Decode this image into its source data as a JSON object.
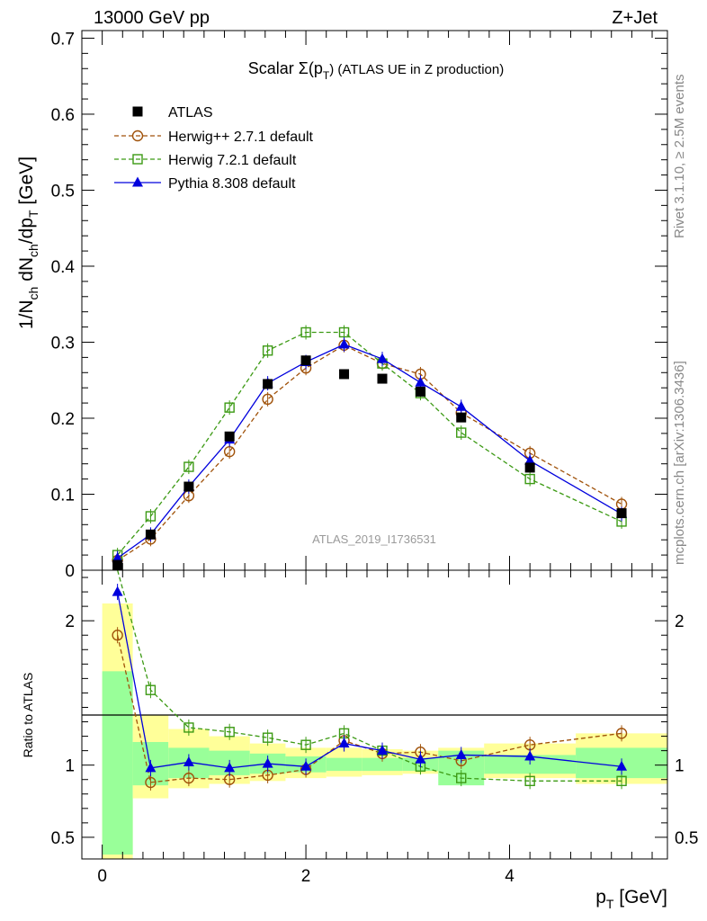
{
  "header": {
    "beam": "13000 GeV pp",
    "process": "Z+Jet"
  },
  "side_text": {
    "rivet": "Rivet 3.1.10, ≥ 2.5M events",
    "mcplots": "mcplots.cern.ch [arXiv:1306.3436]"
  },
  "watermark": "ATLAS_2019_I1736531",
  "colors": {
    "atlas": "#000000",
    "herwigpp": "#a0520a",
    "herwig7": "#3c9a14",
    "pythia": "#0000dd",
    "band_outer": "#ffff99",
    "band_inner": "#99ff99"
  },
  "chart_data": [
    {
      "type": "line",
      "title_prefix": "Scalar Σ(p",
      "title_sub": "T",
      "title_suffix": ") (ATLAS UE in Z production)",
      "ylabel": "1/N_ch dN_ch/dp_T [GeV]",
      "xlim": [
        -0.2,
        5.55
      ],
      "ylim": [
        0,
        0.71
      ],
      "yticks": [
        "0",
        "0.1",
        "0.2",
        "0.3",
        "0.4",
        "0.5",
        "0.6",
        "0.7"
      ],
      "legend_position": "top-left",
      "x": [
        0.15,
        0.475,
        0.85,
        1.25,
        1.625,
        2.0,
        2.375,
        2.75,
        3.125,
        3.525,
        4.2,
        5.1
      ],
      "series": [
        {
          "name": "ATLAS",
          "style": "points",
          "values": [
            0.007,
            0.047,
            0.11,
            0.176,
            0.245,
            0.276,
            0.258,
            0.252,
            0.235,
            0.201,
            0.135,
            0.075
          ]
        },
        {
          "name": "Herwig++ 2.7.1 default",
          "style": "dashed-circle",
          "values": [
            0.013,
            0.041,
            0.098,
            0.156,
            0.225,
            0.266,
            0.296,
            0.272,
            0.258,
            0.207,
            0.154,
            0.087
          ]
        },
        {
          "name": "Herwig 7.2.1 default",
          "style": "dashed-square",
          "values": [
            0.02,
            0.071,
            0.136,
            0.214,
            0.289,
            0.313,
            0.313,
            0.272,
            0.233,
            0.181,
            0.12,
            0.064
          ]
        },
        {
          "name": "Pythia 8.308 default",
          "style": "solid-triangle",
          "values": [
            0.016,
            0.047,
            0.11,
            0.172,
            0.246,
            0.274,
            0.297,
            0.278,
            0.247,
            0.215,
            0.144,
            0.074
          ]
        }
      ]
    },
    {
      "type": "line",
      "ylabel": "Ratio to ATLAS",
      "xlabel": "p_T [GeV]",
      "xlim": [
        -0.2,
        5.55
      ],
      "ylim": [
        0.35,
        2.35
      ],
      "xticks": [
        "0",
        "2",
        "4"
      ],
      "yticks": [
        "0.5",
        "1",
        "2"
      ],
      "bands": {
        "edges": [
          0,
          0.3,
          0.65,
          1.05,
          1.45,
          1.8,
          2.2,
          2.55,
          2.95,
          3.3,
          3.75,
          4.65,
          5.55
        ],
        "outer_low": [
          0.35,
          0.77,
          0.84,
          0.87,
          0.89,
          0.91,
          0.92,
          0.93,
          0.94,
          0.93,
          0.91,
          0.87
        ],
        "outer_high": [
          2.12,
          1.35,
          1.25,
          1.2,
          1.15,
          1.12,
          1.12,
          1.11,
          1.1,
          1.12,
          1.15,
          1.22
        ],
        "inner_low": [
          0.38,
          0.86,
          0.91,
          0.93,
          0.94,
          0.95,
          0.96,
          0.96,
          0.96,
          0.86,
          0.94,
          0.91
        ],
        "inner_high": [
          1.65,
          1.16,
          1.12,
          1.1,
          1.08,
          1.06,
          1.05,
          1.05,
          1.05,
          1.1,
          1.07,
          1.12
        ]
      },
      "series": [
        {
          "name": "Herwig++ 2.7.1 default",
          "values": [
            1.9,
            0.88,
            0.91,
            0.9,
            0.93,
            0.97,
            1.17,
            1.08,
            1.09,
            1.03,
            1.14,
            1.22
          ]
        },
        {
          "name": "Herwig 7.2.1 default",
          "values": [
            2.9,
            1.52,
            1.26,
            1.23,
            1.19,
            1.14,
            1.22,
            1.1,
            0.99,
            0.91,
            0.89,
            0.89
          ]
        },
        {
          "name": "Pythia 8.308 default",
          "values": [
            2.2,
            0.98,
            1.02,
            0.98,
            1.01,
            0.99,
            1.15,
            1.1,
            1.04,
            1.07,
            1.06,
            0.99
          ]
        }
      ]
    }
  ]
}
